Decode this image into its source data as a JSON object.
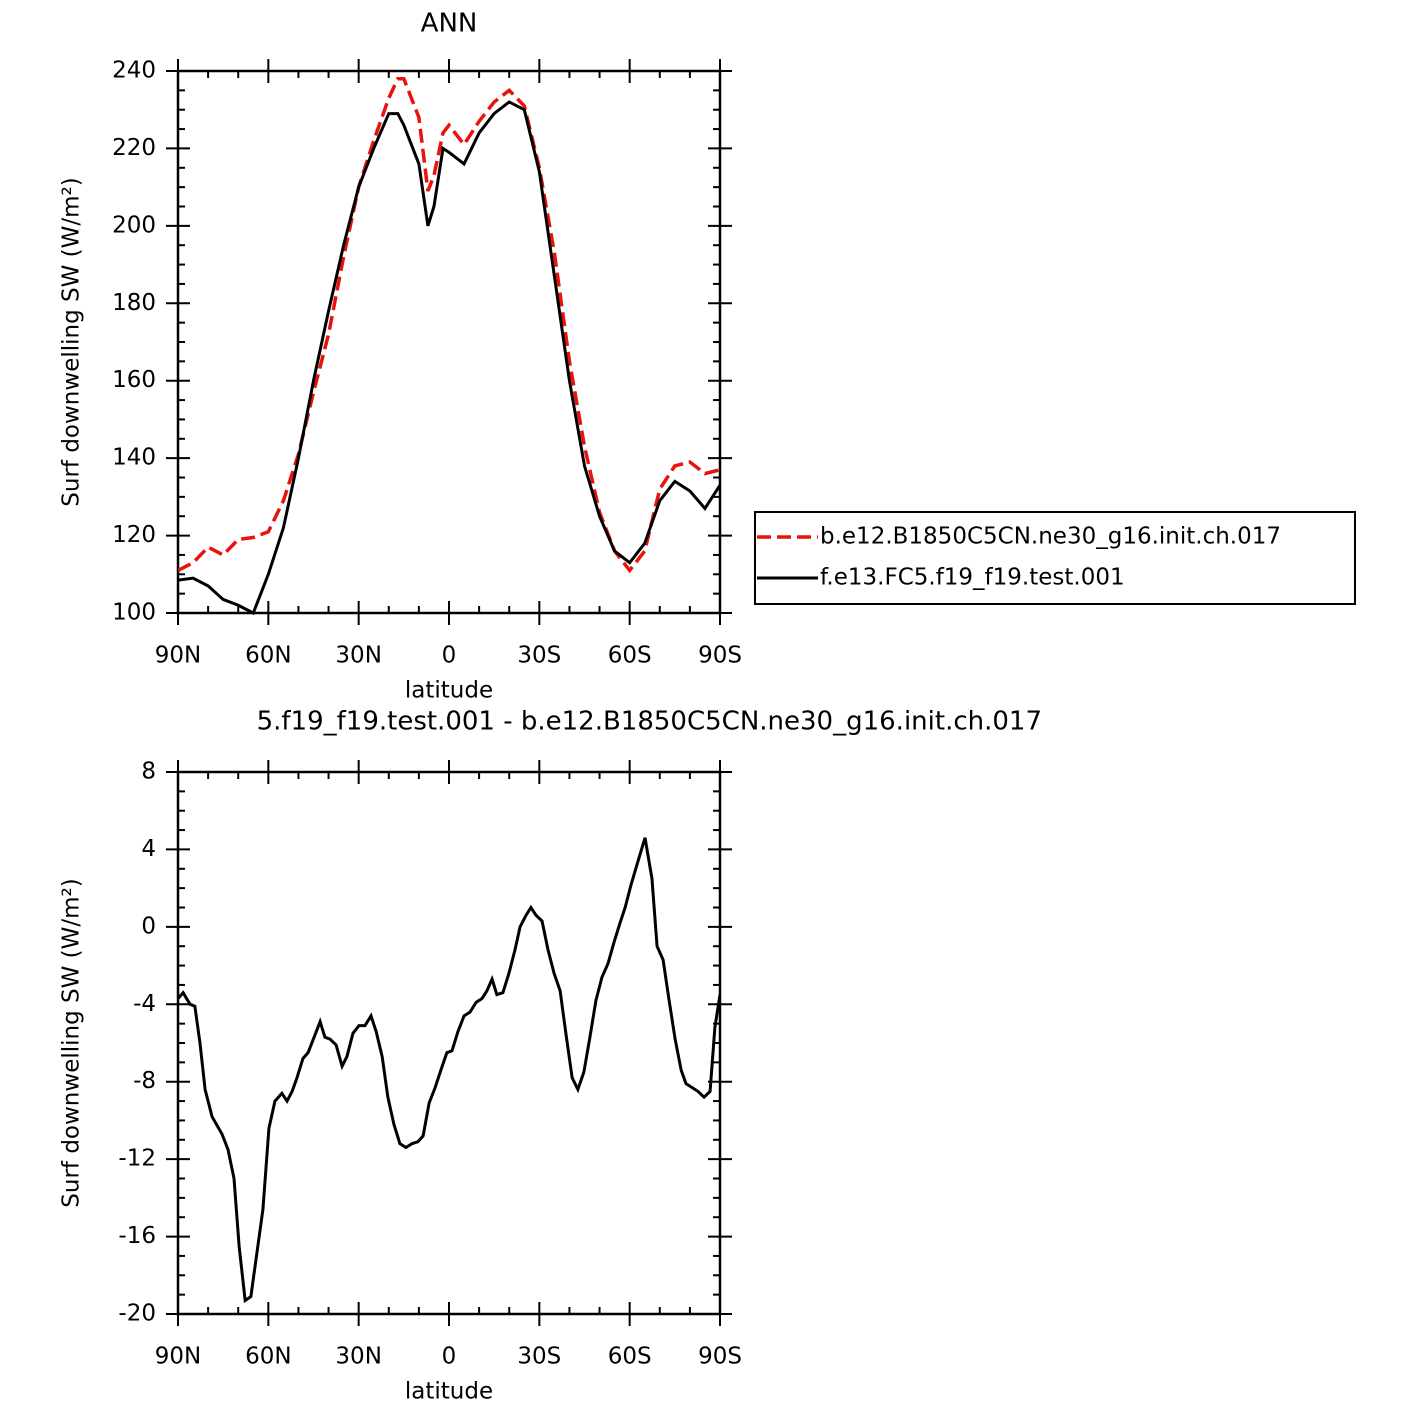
{
  "chart_data": [
    {
      "type": "line",
      "title": "ANN",
      "xlabel": "latitude",
      "ylabel": "Surf downwelling SW (W/m²)",
      "x": [
        90,
        85,
        80,
        75,
        70,
        65,
        60,
        55,
        50,
        45,
        40,
        35,
        30,
        25,
        20,
        17,
        15,
        10,
        7,
        5,
        2,
        0,
        -5,
        -10,
        -15,
        -20,
        -25,
        -30,
        -35,
        -40,
        -45,
        -50,
        -55,
        -60,
        -65,
        -70,
        -75,
        -80,
        -85,
        -90
      ],
      "series": [
        {
          "name": "b.e12.B1850C5CN.ne30_g16.init.ch.017",
          "color": "#e8140c",
          "dashed": true,
          "values": [
            111,
            113,
            117,
            115,
            119,
            119.5,
            121,
            129,
            141,
            157,
            172,
            192,
            210,
            222,
            233,
            238,
            238,
            228,
            209,
            213,
            224,
            226,
            221,
            227,
            232,
            235,
            231,
            215,
            193,
            165,
            143,
            126,
            116,
            111,
            116,
            132,
            138,
            139,
            136,
            137
          ]
        },
        {
          "name": "f.e13.FC5.f19_f19.test.001",
          "color": "#000000",
          "dashed": false,
          "values": [
            108.5,
            109,
            107,
            103.5,
            102,
            100,
            110,
            122,
            140,
            160,
            178,
            195,
            210,
            220,
            229,
            229,
            226,
            216,
            200,
            205,
            220,
            219,
            216,
            224,
            229,
            232,
            230,
            214,
            187,
            160,
            138,
            125,
            116,
            113,
            118,
            129,
            134,
            131.5,
            127,
            133
          ]
        }
      ],
      "xlim": [
        90,
        -90
      ],
      "xticks": [
        {
          "value": 90,
          "label": "90N"
        },
        {
          "value": 60,
          "label": "60N"
        },
        {
          "value": 30,
          "label": "30N"
        },
        0,
        {
          "value": -30,
          "label": "30S"
        },
        {
          "value": -60,
          "label": "60S"
        },
        {
          "value": -90,
          "label": "90S"
        }
      ],
      "ylim": [
        100,
        240
      ],
      "yticks": [
        100,
        120,
        140,
        160,
        180,
        200,
        220,
        240
      ],
      "legend": "right"
    },
    {
      "type": "line",
      "title": "5.f19_f19.test.001 - b.e12.B1850C5CN.ne30_g16.init.ch.017",
      "xlabel": "latitude",
      "ylabel": "Surf downwelling SW (W/m²)",
      "x": [
        90,
        88.3,
        86,
        84.4,
        82.7,
        81,
        78.7,
        75.4,
        73.4,
        71.4,
        69.7,
        67.7,
        65.8,
        61.8,
        59.8,
        57.8,
        55.5,
        53.8,
        52.1,
        50.5,
        48.5,
        46.8,
        44.8,
        42.8,
        41.2,
        39.5,
        37.5,
        35.5,
        33.9,
        31.9,
        29.9,
        27.9,
        25.9,
        24.2,
        22.2,
        20.3,
        18.3,
        16.3,
        14.3,
        12.3,
        10.3,
        8.6,
        6.6,
        4.6,
        2.7,
        0.7,
        -1,
        -3,
        -5,
        -7,
        -9,
        -11,
        -12.6,
        -14.3,
        -15.9,
        -17.9,
        -19.9,
        -21.9,
        -23.6,
        -25.6,
        -27.2,
        -28.9,
        -30.9,
        -32.9,
        -34.9,
        -36.9,
        -38.9,
        -40.9,
        -42.8,
        -44.8,
        -46.8,
        -48.8,
        -50.8,
        -52.8,
        -54.8,
        -56.8,
        -58.5,
        -60.5,
        -62.4,
        -65.1,
        -67.4,
        -69.1,
        -71.1,
        -73.1,
        -75.1,
        -77.1,
        -78.7,
        -80.7,
        -82.7,
        -84.7,
        -86.7,
        -88.3,
        -90
      ],
      "series": [
        {
          "name": "f.e13.FC5.f19_f19.test.001 - b.e12.B1850C5CN.ne30_g16.init.ch.017",
          "color": "#000000",
          "dashed": false,
          "values": [
            -3.7,
            -3.4,
            -4,
            -4.1,
            -6,
            -8.4,
            -9.8,
            -10.7,
            -11.5,
            -13,
            -16.5,
            -19.3,
            -19.1,
            -14.6,
            -10.4,
            -9,
            -8.6,
            -9,
            -8.5,
            -7.8,
            -6.8,
            -6.5,
            -5.7,
            -4.9,
            -5.7,
            -5.8,
            -6.1,
            -7.2,
            -6.7,
            -5.5,
            -5.1,
            -5.1,
            -4.6,
            -5.4,
            -6.7,
            -8.8,
            -10.2,
            -11.2,
            -11.4,
            -11.2,
            -11.1,
            -10.8,
            -9.1,
            -8.3,
            -7.4,
            -6.5,
            -6.4,
            -5.4,
            -4.6,
            -4.4,
            -3.9,
            -3.7,
            -3.3,
            -2.7,
            -3.5,
            -3.4,
            -2.4,
            -1.2,
            0,
            0.6,
            1,
            0.6,
            0.3,
            -1.2,
            -2.4,
            -3.3,
            -5.6,
            -7.8,
            -8.4,
            -7.5,
            -5.7,
            -3.8,
            -2.6,
            -1.9,
            -0.8,
            0.2,
            1,
            2.2,
            3.2,
            4.6,
            2.5,
            -1,
            -1.7,
            -3.8,
            -5.8,
            -7.4,
            -8.1,
            -8.3,
            -8.5,
            -8.8,
            -8.5,
            -5.2,
            -3.5
          ]
        }
      ],
      "xlim": [
        90,
        -90
      ],
      "xticks": [
        {
          "value": 90,
          "label": "90N"
        },
        {
          "value": 60,
          "label": "60N"
        },
        {
          "value": 30,
          "label": "30N"
        },
        0,
        {
          "value": -30,
          "label": "30S"
        },
        {
          "value": -60,
          "label": "60S"
        },
        {
          "value": -90,
          "label": "90S"
        }
      ],
      "ylim": [
        -20,
        8
      ],
      "yticks": [
        -20,
        -16,
        -12,
        -8,
        -4,
        0,
        4,
        8
      ]
    }
  ]
}
